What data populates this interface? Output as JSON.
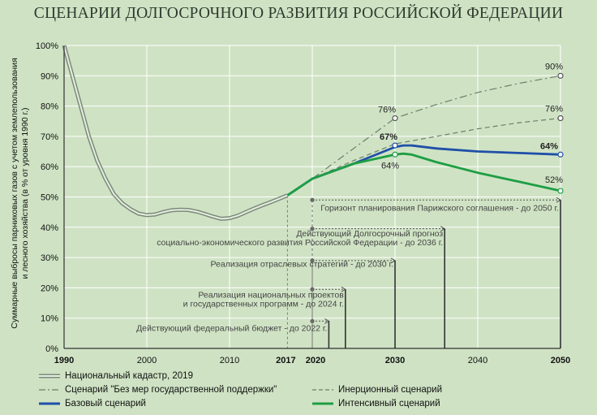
{
  "chart_data": {
    "type": "line",
    "title": "СЦЕНАРИИ ДОЛГОСРОЧНОГО РАЗВИТИЯ РОССИЙСКОЙ ФЕДЕРАЦИИ",
    "ylabel": "Суммарные выбросы парниковых газов с учетом землепользования и лесного хозяйства (в % от уровня 1990 г.)",
    "ylabel_lines": [
      "Суммарные выбросы парниковых газов с учетом землепользования",
      "и лесного хозяйства (в % от уровня 1990 г.)"
    ],
    "xlabel": "",
    "xlim": [
      1990,
      2050
    ],
    "ylim": [
      0,
      100
    ],
    "x_ticks": [
      1990,
      2000,
      2010,
      2017,
      2020,
      2030,
      2040,
      2050
    ],
    "x_ticks_bold": [
      1990,
      2017,
      2020,
      2030,
      2050
    ],
    "y_ticks": [
      0,
      10,
      20,
      30,
      40,
      50,
      60,
      70,
      80,
      90,
      100
    ],
    "y_tick_labels": [
      "0%",
      "10%",
      "20%",
      "30%",
      "40%",
      "50%",
      "60%",
      "70%",
      "80%",
      "90%",
      "100%"
    ],
    "grid": true,
    "legend_position": "bottom",
    "series": [
      {
        "name": "Национальный кадастр, 2019",
        "style": "double",
        "color": "#7a8a7a",
        "x": [
          1990,
          1991,
          1992,
          1993,
          1994,
          1995,
          1996,
          1997,
          1998,
          1999,
          2000,
          2001,
          2002,
          2003,
          2004,
          2005,
          2006,
          2007,
          2008,
          2009,
          2010,
          2011,
          2012,
          2013,
          2014,
          2015,
          2016,
          2017
        ],
        "y": [
          100,
          90,
          80,
          70,
          62,
          56,
          51,
          48,
          46,
          44.5,
          44,
          44.2,
          45,
          45.6,
          45.8,
          45.7,
          45.2,
          44.4,
          43.5,
          42.8,
          43,
          43.8,
          45,
          46.2,
          47.3,
          48.3,
          49.4,
          50.5
        ]
      },
      {
        "name": "Сценарий \"Без мер государственной поддержки\"",
        "style": "dashdot",
        "color": "#6b7d6b",
        "x": [
          2017,
          2020,
          2025,
          2030,
          2035,
          2040,
          2045,
          2050
        ],
        "y": [
          50.5,
          56,
          66,
          76,
          80.5,
          84.5,
          87.5,
          90
        ]
      },
      {
        "name": "Инерционный сценарий",
        "style": "dashed",
        "color": "#6b7d6b",
        "x": [
          2017,
          2020,
          2025,
          2030,
          2035,
          2040,
          2045,
          2050
        ],
        "y": [
          50.5,
          56,
          62,
          67.5,
          70,
          72.5,
          74.5,
          76
        ]
      },
      {
        "name": "Базовый сценарий",
        "style": "solid",
        "color": "#1f4fa8",
        "x": [
          2017,
          2020,
          2025,
          2030,
          2031,
          2032,
          2035,
          2040,
          2045,
          2050
        ],
        "y": [
          50.5,
          56,
          61,
          66.5,
          67,
          67,
          66,
          65,
          64.5,
          64
        ]
      },
      {
        "name": "Интенсивный сценарий",
        "style": "solid",
        "color": "#1e9e44",
        "x": [
          2017,
          2020,
          2025,
          2030,
          2031,
          2032,
          2035,
          2040,
          2045,
          2050
        ],
        "y": [
          50.5,
          56,
          61,
          64,
          64.3,
          64,
          61.5,
          58,
          55,
          52
        ]
      }
    ],
    "value_labels": [
      {
        "text": "90%",
        "x": 2050,
        "y": 90
      },
      {
        "text": "76%",
        "x": 2050,
        "y": 76
      },
      {
        "text": "76%",
        "x": 2030,
        "y": 76
      },
      {
        "text": "67%",
        "x": 2030,
        "y": 67
      },
      {
        "text": "64%",
        "x": 2030,
        "y": 64
      },
      {
        "text": "64%",
        "x": 2050,
        "y": 64
      },
      {
        "text": "52%",
        "x": 2050,
        "y": 52
      }
    ],
    "horizons": [
      {
        "text": "Горизонт планирования  Парижского соглашения - до 2050 г.",
        "x_start": 2020,
        "x_end": 2050,
        "y": 49
      },
      {
        "text": "Действующий Долгосрочный прогноз социально-экономического развития Российской Федерации - до 2036 г.",
        "lines": [
          "Действующий Долгосрочный прогноз",
          "социально-экономического развития Российской Федерации - до 2036 г."
        ],
        "x_start": 2020,
        "x_end": 2036,
        "y": 39.5
      },
      {
        "text": "Реализация отраслевых стратегий - до 2030 г.",
        "x_start": 2020,
        "x_end": 2030,
        "y": 29
      },
      {
        "text": "Реализация национальных проектов и государственных программ - до 2024 г.",
        "lines": [
          "Реализация национальных проектов",
          "и государственных программ - до 2024 г."
        ],
        "x_start": 2020,
        "x_end": 2024,
        "y": 19.5
      },
      {
        "text": "Действующий федеральный бюджет - до 2022 г.",
        "x_start": 2020,
        "x_end": 2022,
        "y": 9
      }
    ]
  }
}
